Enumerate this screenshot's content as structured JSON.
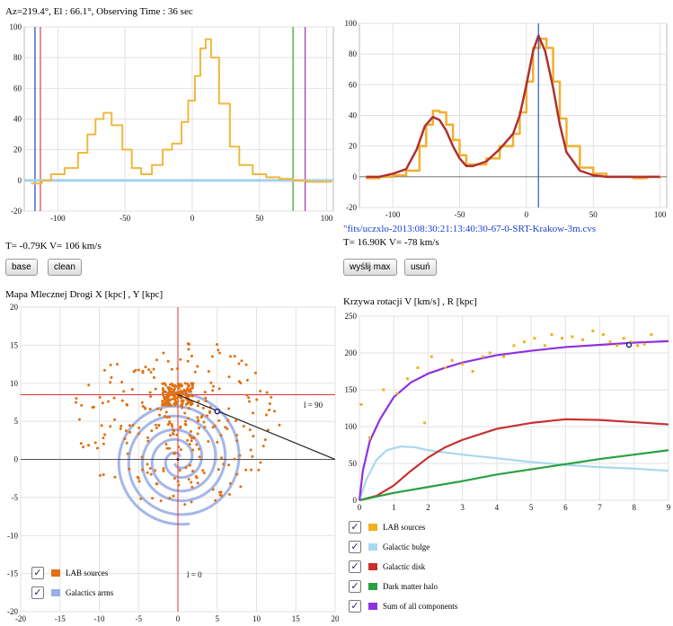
{
  "spectrum": {
    "header": "Az=219.4°, El : 66.1°, Observing Time : 36 sec",
    "readout": "T= -0.79K V= 106 km/s",
    "base_label": "base",
    "clean_label": "clean"
  },
  "fit": {
    "filename": "\"fits/uczxlo-2013:08:30:21:13:40:30-67-0-SRT-Krakow-3m.cvs",
    "readout": "T= 16.90K V= -78 km/s",
    "send_label": "wyślij max",
    "delete_label": "usuń"
  },
  "map": {
    "title": "Mapa Mlecznej Drogi X [kpc] , Y [kpc]",
    "l90_label": "l = 90",
    "l0_label": "l = 0",
    "legend": [
      {
        "label": "LAB sources",
        "color": "#e07010",
        "checked": "✓"
      },
      {
        "label": "Galactics arms",
        "color": "#9aaee8",
        "checked": "✓"
      }
    ]
  },
  "rotation": {
    "title": "Krzywa rotacji V [km/s] , R [kpc]",
    "legend": [
      {
        "label": "LAB sources",
        "color": "#f0b020",
        "checked": "✓"
      },
      {
        "label": "Galactic bulge",
        "color": "#a8d8f0",
        "checked": "✓"
      },
      {
        "label": "Galactic disk",
        "color": "#c83030",
        "checked": "✓"
      },
      {
        "label": "Dark matter halo",
        "color": "#2aa040",
        "checked": "✓"
      },
      {
        "label": "Sum of all components",
        "color": "#9030e0",
        "checked": "✓"
      }
    ]
  },
  "chart_data": [
    {
      "type": "line",
      "id": "spectrum",
      "xlim": [
        -125,
        105
      ],
      "ylim": [
        -20,
        100
      ],
      "xticks": [
        -100,
        -50,
        0,
        50,
        100
      ],
      "yticks": [
        -20,
        0,
        20,
        40,
        60,
        80,
        100
      ],
      "series": [
        {
          "color": "#f0b840",
          "x": [
            -120,
            -112,
            -105,
            -95,
            -85,
            -78,
            -72,
            -66,
            -60,
            -52,
            -45,
            -38,
            -30,
            -22,
            -15,
            -8,
            -3,
            2,
            6,
            10,
            14,
            20,
            28,
            35,
            45,
            55,
            65,
            75,
            85,
            95,
            103
          ],
          "y": [
            -2,
            0,
            4,
            8,
            18,
            30,
            40,
            44,
            36,
            20,
            8,
            4,
            10,
            20,
            24,
            38,
            52,
            68,
            86,
            92,
            80,
            50,
            22,
            10,
            4,
            2,
            1,
            0,
            -1,
            -1,
            0
          ]
        },
        {
          "color": "#a8d0e8",
          "x": [
            -125,
            105
          ],
          "y": [
            0,
            0
          ]
        }
      ],
      "vlines": [
        {
          "x": -117,
          "color": "#2040c0"
        },
        {
          "x": -113,
          "color": "#e04040"
        },
        {
          "x": 75,
          "color": "#30a030"
        },
        {
          "x": 84,
          "color": "#a030c0"
        }
      ]
    },
    {
      "type": "line",
      "id": "fit",
      "xlim": [
        -125,
        105
      ],
      "ylim": [
        -20,
        100
      ],
      "xticks": [
        -100,
        -50,
        0,
        50,
        100
      ],
      "yticks": [
        -20,
        0,
        20,
        40,
        60,
        80,
        100
      ],
      "series": [
        {
          "color": "#f0b030",
          "x": [
            -120,
            -110,
            -100,
            -90,
            -80,
            -75,
            -70,
            -65,
            -60,
            -55,
            -50,
            -45,
            -40,
            -30,
            -20,
            -10,
            -5,
            0,
            5,
            10,
            15,
            20,
            25,
            30,
            40,
            50,
            60,
            70,
            80,
            90,
            100
          ],
          "y": [
            -1,
            0,
            1,
            4,
            20,
            34,
            43,
            42,
            34,
            24,
            14,
            8,
            8,
            12,
            20,
            28,
            42,
            62,
            84,
            90,
            84,
            62,
            38,
            20,
            6,
            2,
            0,
            0,
            -1,
            0,
            -1
          ]
        },
        {
          "color": "#b03030",
          "x": [
            -120,
            -110,
            -100,
            -90,
            -82,
            -76,
            -70,
            -65,
            -60,
            -55,
            -50,
            -45,
            -40,
            -30,
            -20,
            -10,
            -5,
            0,
            5,
            9,
            14,
            20,
            25,
            30,
            40,
            50,
            60,
            70,
            80,
            90,
            100
          ],
          "y": [
            0,
            0,
            2,
            5,
            18,
            33,
            39,
            37,
            30,
            20,
            12,
            7,
            7,
            10,
            18,
            28,
            40,
            60,
            82,
            92,
            82,
            58,
            34,
            16,
            4,
            1,
            0,
            0,
            0,
            0,
            0
          ]
        }
      ],
      "vlines": [
        {
          "x": 9,
          "color": "#3050d0"
        }
      ]
    },
    {
      "type": "scatter",
      "id": "map",
      "xlim": [
        -20,
        20
      ],
      "ylim": [
        -20,
        20
      ],
      "xticks": [
        -20,
        -15,
        -10,
        -5,
        0,
        5,
        10,
        15,
        20
      ],
      "yticks": [
        -20,
        -15,
        -10,
        -5,
        0,
        5,
        10,
        15,
        20
      ],
      "sun": [
        0,
        8.5
      ],
      "marker": [
        5,
        6.3
      ],
      "arms_spacing_kpc": 3,
      "points_color": "#e07010"
    },
    {
      "type": "line",
      "id": "rotation",
      "xlim": [
        0,
        9
      ],
      "ylim": [
        0,
        250
      ],
      "xticks": [
        0,
        1,
        2,
        3,
        4,
        5,
        6,
        7,
        8,
        9
      ],
      "yticks": [
        0,
        50,
        100,
        150,
        200,
        250
      ],
      "series": [
        {
          "name": "Galactic bulge",
          "color": "#a8d8f0",
          "x": [
            0,
            0.2,
            0.5,
            0.8,
            1.2,
            1.6,
            2,
            3,
            4,
            5,
            6,
            7,
            8,
            9
          ],
          "y": [
            0,
            28,
            55,
            68,
            73,
            72,
            68,
            62,
            57,
            52,
            48,
            45,
            43,
            40
          ]
        },
        {
          "name": "Galactic disk",
          "color": "#c83030",
          "x": [
            0,
            0.5,
            1,
            1.5,
            2,
            2.5,
            3,
            4,
            5,
            6,
            7,
            8,
            9
          ],
          "y": [
            0,
            6,
            20,
            40,
            58,
            72,
            82,
            97,
            105,
            110,
            109,
            106,
            103
          ]
        },
        {
          "name": "Dark matter halo",
          "color": "#2aa040",
          "x": [
            0,
            1,
            2,
            3,
            4,
            5,
            6,
            7,
            8,
            9
          ],
          "y": [
            0,
            10,
            18,
            26,
            35,
            42,
            49,
            56,
            62,
            68
          ]
        },
        {
          "name": "Sum of all components",
          "color": "#9030e0",
          "x": [
            0,
            0.1,
            0.3,
            0.6,
            1,
            1.5,
            2,
            2.5,
            3,
            4,
            5,
            6,
            7,
            8,
            9
          ],
          "y": [
            0,
            40,
            80,
            110,
            140,
            160,
            172,
            180,
            187,
            197,
            203,
            208,
            211,
            214,
            216
          ]
        }
      ],
      "points": {
        "name": "LAB sources",
        "color": "#f0b020",
        "x": [
          0.05,
          0.3,
          0.7,
          1.1,
          1.4,
          1.7,
          1.9,
          2.1,
          2.5,
          2.7,
          3.0,
          3.3,
          3.6,
          3.8,
          4.2,
          4.5,
          4.8,
          5.1,
          5.4,
          5.6,
          5.9,
          6.2,
          6.5,
          6.8,
          7.1,
          7.3,
          7.5,
          7.7,
          7.9,
          8.1,
          8.3,
          8.5
        ],
        "y": [
          130,
          85,
          150,
          145,
          165,
          180,
          105,
          195,
          180,
          190,
          185,
          175,
          195,
          200,
          195,
          210,
          215,
          220,
          210,
          225,
          220,
          222,
          218,
          230,
          225,
          215,
          210,
          220,
          215,
          210,
          212,
          225
        ]
      },
      "marker": [
        7.85,
        211
      ]
    }
  ]
}
